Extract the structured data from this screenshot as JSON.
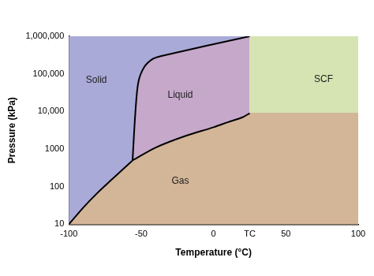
{
  "chart_data": {
    "type": "line",
    "x_label": "Temperature (°C)",
    "y_label": "Pressure (kPa)",
    "log": "y",
    "grid": false,
    "xlim": [
      -100,
      100
    ],
    "xticks": [
      -100,
      -50,
      0,
      {
        "value": 25,
        "label": "TC"
      },
      50,
      100
    ],
    "ylim": [
      10,
      1000000
    ],
    "yticks": [
      10,
      100,
      1000,
      {
        "value": 10000,
        "label": "10,000"
      },
      {
        "value": 100000,
        "label": "100,000"
      },
      {
        "value": 1000000,
        "label": "1,000,000"
      }
    ],
    "series": [
      {
        "color": "#000000",
        "x": [
          -100,
          -90,
          -80,
          -70,
          -56
        ],
        "values": [
          10,
          28,
          70,
          160,
          500
        ]
      },
      {
        "color": "#000000",
        "x": [
          -56,
          -40,
          -20,
          0,
          10,
          20,
          25
        ],
        "values": [
          500,
          1100,
          2200,
          3800,
          5200,
          7000,
          9000
        ]
      },
      {
        "color": "#000000",
        "x": [
          -56,
          -54,
          -52,
          -48,
          -42,
          -36,
          25
        ],
        "values": [
          500,
          10000,
          60000,
          150000,
          250000,
          300000,
          1000000
        ]
      }
    ],
    "regions": [
      {
        "name": "Solid",
        "color": "#a9aad8",
        "label_at": [
          -81,
          68000
        ],
        "x": [
          -100,
          -90,
          -80,
          -70,
          -56,
          -54,
          -52,
          -48,
          -42,
          -36,
          25,
          -100
        ],
        "values": [
          10,
          28,
          70,
          160,
          500,
          10000,
          60000,
          150000,
          250000,
          300000,
          1000000,
          1000000
        ]
      },
      {
        "name": "Liquid",
        "color": "#c6a8cb",
        "label_at": [
          -23,
          27000
        ],
        "x": [
          -56,
          -54,
          -52,
          -48,
          -42,
          -36,
          25,
          25,
          20,
          10,
          0,
          -20,
          -40
        ],
        "values": [
          500,
          10000,
          60000,
          150000,
          250000,
          300000,
          1000000,
          9000,
          7000,
          5200,
          3800,
          2200,
          1100
        ]
      },
      {
        "name": "SCF",
        "color": "#d5e4b2",
        "label_at": [
          76,
          70000
        ],
        "x": [
          25,
          100,
          100,
          25
        ],
        "values": [
          9000,
          9000,
          1000000,
          1000000
        ]
      },
      {
        "name": "Gas",
        "color": "#d3b598",
        "label_at": [
          -23,
          140
        ],
        "x": [
          -100,
          -90,
          -80,
          -70,
          -56,
          -40,
          -20,
          0,
          10,
          20,
          25,
          100,
          100
        ],
        "values": [
          10,
          28,
          70,
          160,
          500,
          1100,
          2200,
          3800,
          5200,
          7000,
          9000,
          9000,
          10
        ]
      }
    ]
  }
}
